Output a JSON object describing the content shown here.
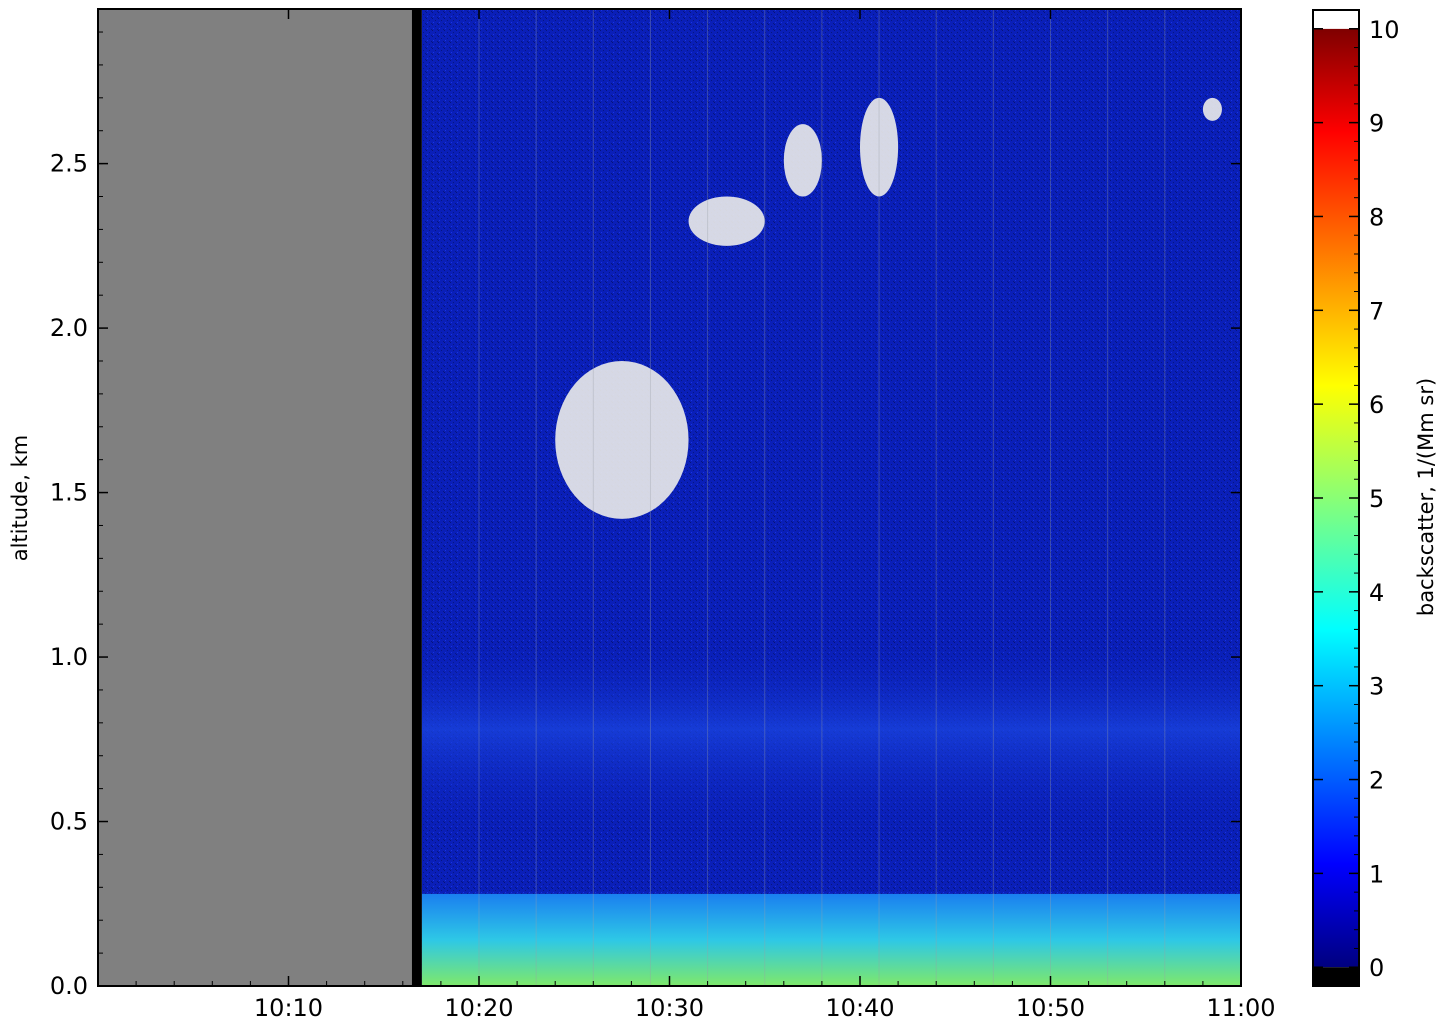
{
  "chart_data": {
    "type": "heatmap",
    "title": "",
    "xlabel": "",
    "ylabel": "altitude, km",
    "x_range": [
      "10:00",
      "11:00"
    ],
    "x_ticks": [
      "10:10",
      "10:20",
      "10:30",
      "10:40",
      "10:50",
      "11:00"
    ],
    "y_range": [
      0.0,
      2.97
    ],
    "y_ticks": [
      "0.0",
      "0.5",
      "1.0",
      "1.5",
      "2.0",
      "2.5"
    ],
    "no_data_span": [
      "10:00",
      "10:17"
    ],
    "colorbar": {
      "label": "backscatter, 1/(Mm sr)",
      "range": [
        -0.2,
        10.2
      ],
      "ticks": [
        "0",
        "1",
        "2",
        "3",
        "4",
        "5",
        "6",
        "7",
        "8",
        "9",
        "10"
      ],
      "colormap": "jet",
      "under_color": "#000000",
      "over_color": "#ffffff"
    },
    "features": [
      {
        "label": "surface aerosol layer",
        "altitude_km": [
          0.0,
          0.28
        ],
        "time": [
          "10:17",
          "11:00"
        ],
        "backscatter": 4
      },
      {
        "label": "elevated aerosol band",
        "altitude_km": [
          0.45,
          1.05
        ],
        "time": [
          "10:17",
          "11:00"
        ],
        "backscatter": 1.6
      },
      {
        "label": "cloud",
        "altitude_km": [
          1.42,
          1.9
        ],
        "time": [
          "10:24",
          "10:31"
        ],
        "backscatter": 10
      },
      {
        "label": "cloud",
        "altitude_km": [
          2.25,
          2.4
        ],
        "time": [
          "10:31",
          "10:35"
        ],
        "backscatter": 10
      },
      {
        "label": "cloud",
        "altitude_km": [
          2.4,
          2.62
        ],
        "time": [
          "10:36",
          "10:38"
        ],
        "backscatter": 10
      },
      {
        "label": "cloud",
        "altitude_km": [
          2.4,
          2.7
        ],
        "time": [
          "10:40",
          "10:42"
        ],
        "backscatter": 10
      },
      {
        "label": "cloud",
        "altitude_km": [
          2.63,
          2.7
        ],
        "time": [
          "10:58",
          "10:59"
        ],
        "backscatter": 10
      }
    ],
    "grid": false
  },
  "colors": {
    "no_data": "#808080",
    "background": "#0a1fb8",
    "cloud": "#e8e8e8"
  }
}
